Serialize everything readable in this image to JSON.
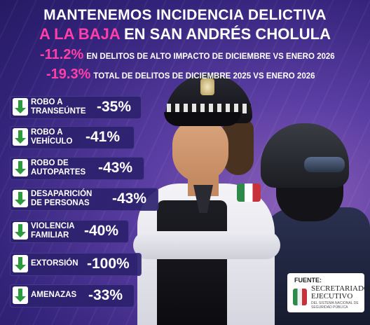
{
  "header": {
    "title_line1": "MANTENEMOS INCIDENCIA DELICTIVA",
    "title_line2_pink": "A LA BAJA",
    "title_line2_white": " EN SAN ANDRÉS CHOLULA"
  },
  "stats": [
    {
      "value": "-11.2%",
      "text": "EN DELITOS DE ALTO IMPACTO DE DICIEMBRE VS ENERO 2026"
    },
    {
      "value": "-19.3%",
      "text": "TOTAL DE DELITOS DE DICIEMBRE 2025 VS ENERO 2026"
    }
  ],
  "crimes": [
    {
      "line1": "ROBO A",
      "line2": "TRANSEÚNTE",
      "value": "-35%"
    },
    {
      "line1": "ROBO A",
      "line2": "VEHÍCULO",
      "value": "-41%"
    },
    {
      "line1": "ROBO DE",
      "line2": "AUTOPARTES",
      "value": "-43%"
    },
    {
      "line1": "DESAPARICIÓN",
      "line2": "DE PERSONAS",
      "value": "-43%"
    },
    {
      "line1": "VIOLENCIA",
      "line2": "FAMILIAR",
      "value": "-40%"
    },
    {
      "line1": "EXTORSIÓN",
      "line2": "",
      "value": "-100%"
    },
    {
      "line1": "AMENAZAS",
      "line2": "",
      "value": "-33%"
    }
  ],
  "source": {
    "label": "FUENTE:",
    "name_line1": "SECRETARIADO",
    "name_line2": "EJECUTIVO",
    "sub": "DEL SISTEMA NACIONAL DE SEGURIDAD PÚBLICA"
  },
  "colors": {
    "accent": "#ff3fa8",
    "background": "#33237a",
    "arrow": "#2e9a3e"
  }
}
